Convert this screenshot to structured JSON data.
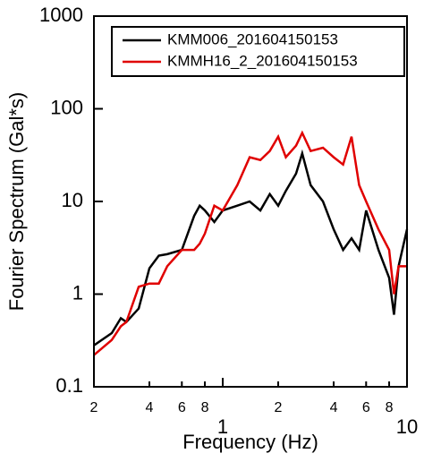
{
  "chart_data": {
    "type": "line",
    "xlabel": "Frequency (Hz)",
    "ylabel": "Fourier Spectrum (Gal*s)",
    "x": [
      0.2,
      0.25,
      0.28,
      0.3,
      0.35,
      0.4,
      0.45,
      0.5,
      0.6,
      0.7,
      0.75,
      0.8,
      0.9,
      1.0,
      1.2,
      1.4,
      1.6,
      1.8,
      2.0,
      2.2,
      2.5,
      2.7,
      3.0,
      3.5,
      4.0,
      4.5,
      5.0,
      5.5,
      6.0,
      7.0,
      8.0,
      8.5,
      9.0,
      10.0
    ],
    "series": [
      {
        "name": "KMM006_201604150153",
        "color": "#000000",
        "values": [
          0.28,
          0.38,
          0.55,
          0.5,
          0.7,
          1.9,
          2.6,
          2.7,
          3,
          7,
          9,
          8,
          6,
          8,
          9,
          10,
          8,
          12,
          9,
          13,
          20,
          33,
          15,
          10,
          5,
          3,
          4,
          3,
          8,
          3,
          1.5,
          0.6,
          2,
          5
        ]
      },
      {
        "name": "KMMH16_2_201604150153",
        "color": "#e00000",
        "values": [
          0.22,
          0.32,
          0.45,
          0.5,
          1.2,
          1.3,
          1.3,
          2,
          3,
          3,
          3.5,
          4.5,
          9,
          8,
          15,
          30,
          28,
          35,
          50,
          30,
          40,
          55,
          35,
          38,
          30,
          25,
          50,
          15,
          10,
          5,
          3,
          1,
          2,
          2
        ]
      }
    ],
    "xlim": [
      0.2,
      10
    ],
    "ylim": [
      0.1,
      1000
    ],
    "xlog": true,
    "ylog": true,
    "xticks": [
      {
        "value": 0.2,
        "label": "2"
      },
      {
        "value": 0.4,
        "label": "4"
      },
      {
        "value": 0.6,
        "label": "6"
      },
      {
        "value": 0.8,
        "label": "8"
      },
      1,
      {
        "value": 2,
        "label": "2"
      },
      {
        "value": 4,
        "label": "4"
      },
      {
        "value": 6,
        "label": "6"
      },
      {
        "value": 8,
        "label": "8"
      },
      10
    ],
    "yticks": [
      0.1,
      1,
      10,
      100,
      1000
    ],
    "legend": "upper right"
  }
}
